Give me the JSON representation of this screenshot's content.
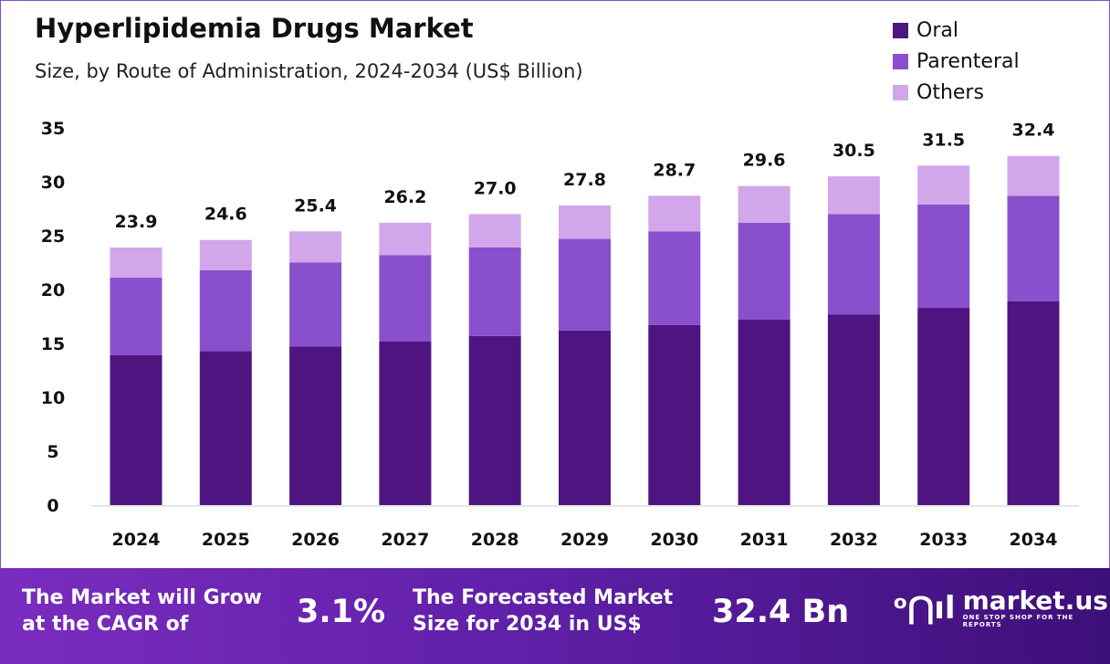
{
  "chart_data": {
    "type": "bar",
    "stacked": true,
    "title": "Hyperlipidemia Drugs Market",
    "subtitle": "Size, by Route of Administration, 2024-2034 (US$ Billion)",
    "categories": [
      "2024",
      "2025",
      "2026",
      "2027",
      "2028",
      "2029",
      "2030",
      "2031",
      "2032",
      "2033",
      "2034"
    ],
    "series": [
      {
        "name": "Oral",
        "color": "#4e1580",
        "values": [
          13.9,
          14.3,
          14.7,
          15.2,
          15.7,
          16.2,
          16.7,
          17.2,
          17.7,
          18.3,
          18.9
        ]
      },
      {
        "name": "Parenteral",
        "color": "#8a4fcc",
        "values": [
          7.2,
          7.5,
          7.8,
          8.0,
          8.2,
          8.5,
          8.7,
          9.0,
          9.3,
          9.6,
          9.8
        ]
      },
      {
        "name": "Others",
        "color": "#d2a6ea",
        "values": [
          2.8,
          2.8,
          2.9,
          3.0,
          3.1,
          3.1,
          3.3,
          3.4,
          3.5,
          3.6,
          3.7
        ]
      }
    ],
    "totals": [
      "23.9",
      "24.6",
      "25.4",
      "26.2",
      "27.0",
      "27.8",
      "28.7",
      "29.6",
      "30.5",
      "31.5",
      "32.4"
    ],
    "ylim": [
      0,
      35
    ],
    "yticks": [
      0,
      5,
      10,
      15,
      20,
      25,
      30,
      35
    ],
    "grid": false,
    "legend": "top-right"
  },
  "footer": {
    "cagr_label_1": "The Market will Grow",
    "cagr_label_2": "at the CAGR of",
    "cagr_value": "3.1%",
    "forecast_label_1": "The Forecasted Market",
    "forecast_label_2": "Size for 2034 in US$",
    "forecast_value": "32.4 Bn",
    "brand_name": "market.us",
    "brand_tagline": "ONE STOP SHOP FOR THE REPORTS"
  }
}
